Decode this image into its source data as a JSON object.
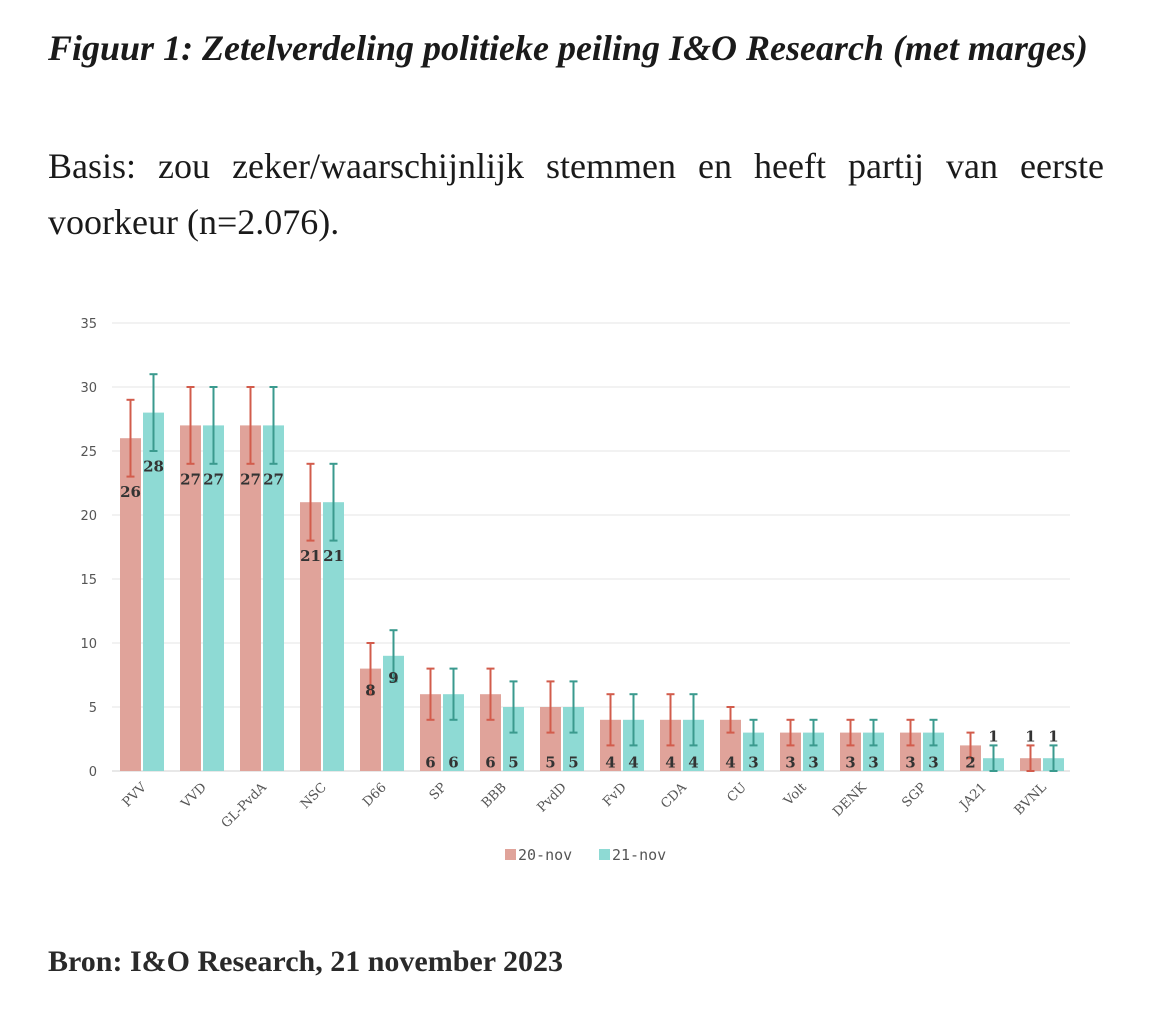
{
  "title": "Figuur 1: Zetelverdeling politieke peiling I&O Research (met marges)",
  "subtitle": "Basis: zou zeker/waarschijnlijk stemmen en heeft partij van eerste voorkeur (n=2.076).",
  "source": "Bron: I&O Research, 21 november 2023",
  "chart_data": {
    "type": "bar",
    "categories": [
      "PVV",
      "VVD",
      "GL-PvdA",
      "NSC",
      "D66",
      "SP",
      "BBB",
      "PvdD",
      "FvD",
      "CDA",
      "CU",
      "Volt",
      "DENK",
      "SGP",
      "JA21",
      "BVNL"
    ],
    "series": [
      {
        "name": "20-nov",
        "color": "#e0a39a",
        "error_color": "#d25c4c",
        "values": [
          26,
          27,
          27,
          21,
          8,
          6,
          6,
          5,
          4,
          4,
          4,
          3,
          3,
          3,
          2,
          1
        ],
        "error_low": [
          23,
          24,
          24,
          18,
          6,
          4,
          4,
          3,
          2,
          2,
          3,
          2,
          2,
          2,
          1,
          0
        ],
        "error_high": [
          29,
          30,
          30,
          24,
          10,
          8,
          8,
          7,
          6,
          6,
          5,
          4,
          4,
          4,
          3,
          2
        ]
      },
      {
        "name": "21-nov",
        "color": "#8edad4",
        "error_color": "#3a9a8e",
        "values": [
          28,
          27,
          27,
          21,
          9,
          6,
          5,
          5,
          4,
          4,
          3,
          3,
          3,
          3,
          1,
          1
        ],
        "error_low": [
          25,
          24,
          24,
          18,
          7,
          4,
          3,
          3,
          2,
          2,
          2,
          2,
          2,
          2,
          0,
          0
        ],
        "error_high": [
          31,
          30,
          30,
          24,
          11,
          8,
          7,
          7,
          6,
          6,
          4,
          4,
          4,
          4,
          2,
          2
        ]
      }
    ],
    "ylim": [
      0,
      35
    ],
    "yticks": [
      0,
      5,
      10,
      15,
      20,
      25,
      30,
      35
    ],
    "grid": true,
    "legend": "bottom",
    "xlabel": "",
    "ylabel": ""
  }
}
